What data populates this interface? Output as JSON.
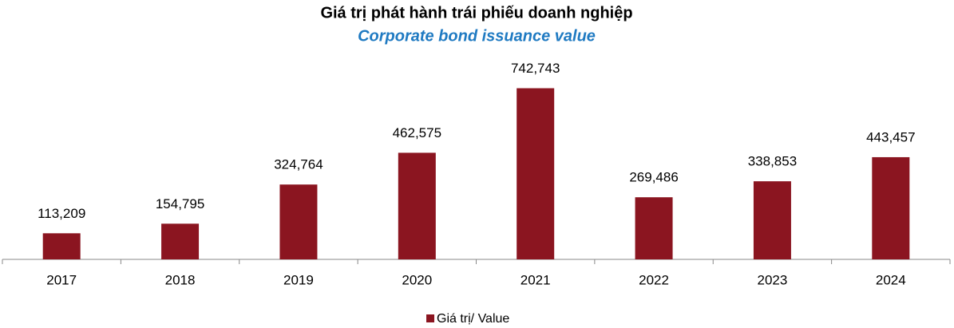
{
  "chart_data": {
    "type": "bar",
    "title": "Giá trị phát hành trái phiếu doanh nghiệp",
    "subtitle": "Corporate bond issuance value",
    "categories": [
      "2017",
      "2018",
      "2019",
      "2020",
      "2021",
      "2022",
      "2023",
      "2024"
    ],
    "series": [
      {
        "name": "Giá trị/ Value",
        "color": "#8b1520",
        "values": [
          113209,
          154795,
          324764,
          462575,
          742743,
          269486,
          338853,
          443457
        ],
        "value_labels": [
          "113,209",
          "154,795",
          "324,764",
          "462,575",
          "742,743",
          "269,486",
          "338,853",
          "443,457"
        ]
      }
    ],
    "ylim": [
      0,
      800000
    ],
    "legend": "bottom"
  }
}
